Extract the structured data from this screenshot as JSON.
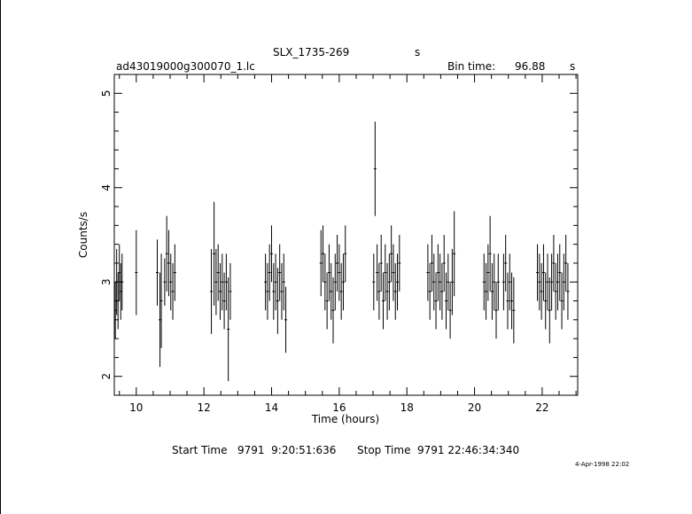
{
  "header": {
    "object": "SLX_1735-269",
    "object_unit": "s",
    "filename": "ad43019000g300070_1.lc",
    "bin_label": "Bin time:",
    "bin_value": "96.88",
    "bin_unit": "s"
  },
  "footer": {
    "start_label": "Start Time",
    "start_value": "9791  9:20:51:636",
    "stop_label": "Stop Time",
    "stop_value": "9791 22:46:34:340",
    "date_stamp": "4-Apr-1998 22:02"
  },
  "chart_data": {
    "type": "scatter",
    "title": "SLX_1735-269",
    "xlabel": "Time (hours)",
    "ylabel": "Counts/s",
    "xlim": [
      9.35,
      23.05
    ],
    "ylim": [
      1.8,
      5.2
    ],
    "xticks": [
      10,
      12,
      14,
      16,
      18,
      20,
      22
    ],
    "yticks": [
      2,
      3,
      4,
      5
    ],
    "grid": false,
    "error_bars": true,
    "series": [
      {
        "points": [
          [
            9.38,
            2.7,
            0.3
          ],
          [
            9.42,
            3.0,
            0.35
          ],
          [
            9.46,
            2.8,
            0.3
          ],
          [
            9.5,
            3.1,
            0.3
          ],
          [
            9.54,
            2.9,
            0.3
          ],
          [
            9.58,
            3.0,
            0.3
          ],
          [
            10.0,
            3.1,
            0.45
          ],
          [
            10.62,
            3.1,
            0.35
          ],
          [
            10.7,
            2.6,
            0.5
          ],
          [
            10.74,
            2.8,
            0.5
          ],
          [
            10.84,
            3.0,
            0.25
          ],
          [
            10.9,
            3.3,
            0.4
          ],
          [
            10.96,
            3.2,
            0.35
          ],
          [
            11.02,
            3.0,
            0.3
          ],
          [
            11.08,
            2.9,
            0.3
          ],
          [
            11.14,
            3.1,
            0.3
          ],
          [
            12.22,
            2.9,
            0.45
          ],
          [
            12.3,
            3.3,
            0.55
          ],
          [
            12.36,
            3.0,
            0.35
          ],
          [
            12.42,
            3.1,
            0.3
          ],
          [
            12.48,
            2.9,
            0.3
          ],
          [
            12.54,
            3.0,
            0.3
          ],
          [
            12.6,
            2.8,
            0.3
          ],
          [
            12.66,
            3.0,
            0.3
          ],
          [
            12.72,
            2.5,
            0.55
          ],
          [
            12.78,
            2.9,
            0.3
          ],
          [
            13.82,
            3.0,
            0.3
          ],
          [
            13.88,
            2.9,
            0.3
          ],
          [
            13.94,
            3.1,
            0.3
          ],
          [
            14.0,
            3.3,
            0.3
          ],
          [
            14.06,
            2.9,
            0.3
          ],
          [
            14.12,
            3.0,
            0.3
          ],
          [
            14.18,
            2.8,
            0.35
          ],
          [
            14.24,
            3.1,
            0.3
          ],
          [
            14.3,
            2.9,
            0.3
          ],
          [
            14.36,
            3.0,
            0.3
          ],
          [
            14.42,
            2.6,
            0.35
          ],
          [
            15.46,
            3.2,
            0.35
          ],
          [
            15.52,
            3.3,
            0.3
          ],
          [
            15.58,
            3.0,
            0.3
          ],
          [
            15.64,
            2.8,
            0.3
          ],
          [
            15.7,
            3.1,
            0.3
          ],
          [
            15.76,
            2.9,
            0.3
          ],
          [
            15.82,
            2.7,
            0.35
          ],
          [
            15.88,
            3.0,
            0.3
          ],
          [
            15.94,
            3.2,
            0.3
          ],
          [
            16.0,
            3.1,
            0.3
          ],
          [
            16.06,
            2.9,
            0.3
          ],
          [
            16.12,
            3.0,
            0.3
          ],
          [
            16.18,
            3.3,
            0.3
          ],
          [
            17.02,
            3.0,
            0.3
          ],
          [
            17.06,
            4.2,
            0.5
          ],
          [
            17.12,
            3.1,
            0.3
          ],
          [
            17.18,
            2.9,
            0.3
          ],
          [
            17.24,
            3.2,
            0.3
          ],
          [
            17.3,
            2.8,
            0.3
          ],
          [
            17.36,
            3.1,
            0.3
          ],
          [
            17.42,
            2.9,
            0.3
          ],
          [
            17.48,
            3.0,
            0.3
          ],
          [
            17.54,
            3.3,
            0.3
          ],
          [
            17.6,
            3.1,
            0.3
          ],
          [
            17.66,
            2.9,
            0.3
          ],
          [
            17.72,
            3.0,
            0.3
          ],
          [
            17.78,
            3.2,
            0.3
          ],
          [
            18.62,
            3.1,
            0.3
          ],
          [
            18.68,
            2.9,
            0.3
          ],
          [
            18.74,
            3.2,
            0.3
          ],
          [
            18.8,
            3.0,
            0.3
          ],
          [
            18.86,
            2.8,
            0.3
          ],
          [
            18.92,
            3.1,
            0.3
          ],
          [
            18.98,
            3.0,
            0.3
          ],
          [
            19.04,
            2.9,
            0.3
          ],
          [
            19.1,
            3.2,
            0.3
          ],
          [
            19.16,
            2.8,
            0.3
          ],
          [
            19.22,
            3.0,
            0.3
          ],
          [
            19.28,
            2.7,
            0.3
          ],
          [
            19.34,
            3.0,
            0.35
          ],
          [
            19.4,
            3.3,
            0.45
          ],
          [
            20.28,
            3.0,
            0.3
          ],
          [
            20.34,
            2.9,
            0.3
          ],
          [
            20.4,
            3.1,
            0.3
          ],
          [
            20.46,
            3.3,
            0.4
          ],
          [
            20.52,
            2.9,
            0.3
          ],
          [
            20.58,
            3.0,
            0.3
          ],
          [
            20.64,
            2.7,
            0.3
          ],
          [
            20.7,
            3.0,
            0.3
          ],
          [
            20.86,
            3.0,
            0.3
          ],
          [
            20.92,
            3.2,
            0.3
          ],
          [
            20.98,
            2.8,
            0.3
          ],
          [
            21.04,
            3.0,
            0.3
          ],
          [
            21.1,
            2.8,
            0.3
          ],
          [
            21.16,
            2.7,
            0.35
          ],
          [
            21.86,
            3.1,
            0.3
          ],
          [
            21.92,
            3.0,
            0.3
          ],
          [
            21.98,
            2.9,
            0.3
          ],
          [
            22.04,
            3.1,
            0.3
          ],
          [
            22.1,
            2.8,
            0.3
          ],
          [
            22.16,
            3.0,
            0.3
          ],
          [
            22.22,
            2.7,
            0.35
          ],
          [
            22.28,
            3.0,
            0.3
          ],
          [
            22.34,
            3.2,
            0.3
          ],
          [
            22.4,
            2.9,
            0.3
          ],
          [
            22.46,
            3.0,
            0.3
          ],
          [
            22.52,
            3.1,
            0.3
          ],
          [
            22.58,
            2.8,
            0.3
          ],
          [
            22.64,
            3.0,
            0.3
          ],
          [
            22.7,
            3.2,
            0.3
          ],
          [
            22.76,
            2.9,
            0.3
          ]
        ]
      }
    ]
  }
}
